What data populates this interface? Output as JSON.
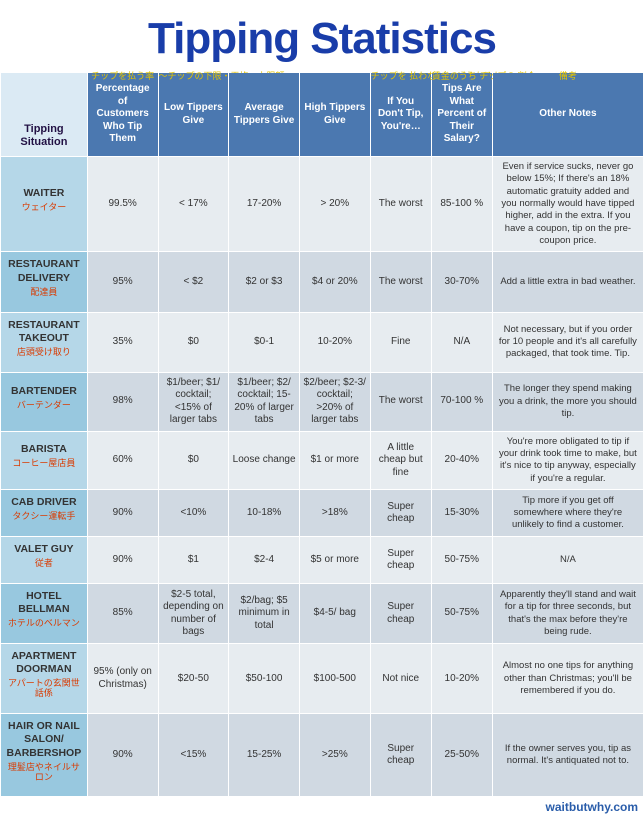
{
  "title": "Tipping Statistics",
  "footer": "waitbutwhy.com",
  "corner": "Tipping Situation",
  "jp_headers": [
    "チップを払う率",
    "〜チップの下限・平均・上限額〜",
    "チップを 払わないと どうなるか",
    "賃金のうち チップの 割合",
    "備考"
  ],
  "headers": [
    "Percentage of Customers Who Tip Them",
    "Low Tippers Give",
    "Average Tippers Give",
    "High Tippers Give",
    "If You Don't Tip, You're…",
    "Tips Are What Percent of Their Salary?",
    "Other Notes"
  ],
  "rows": [
    {
      "label": "WAITER",
      "jp": "ウェイター",
      "cells": [
        "99.5%",
        "< 17%",
        "17-20%",
        "> 20%",
        "The worst",
        "85-100 %",
        "Even if service sucks, never go below 15%; If there's an 18% automatic gratuity added and you normally would have tipped higher, add in the extra. If you have a coupon, tip on the pre-coupon price."
      ]
    },
    {
      "label": "RESTAURANT DELIVERY",
      "jp": "配達員",
      "cells": [
        "95%",
        "< $2",
        "$2 or $3",
        "$4 or 20%",
        "The worst",
        "30-70%",
        "Add a little extra in bad weather."
      ]
    },
    {
      "label": "RESTAURANT TAKEOUT",
      "jp": "店頭受け取り",
      "cells": [
        "35%",
        "$0",
        "$0-1",
        "10-20%",
        "Fine",
        "N/A",
        "Not necessary, but if you order for 10 people and it's all carefully packaged, that took time. Tip."
      ]
    },
    {
      "label": "BARTENDER",
      "jp": "バーテンダー",
      "cells": [
        "98%",
        "$1/beer; $1/ cocktail; <15% of larger tabs",
        "$1/beer; $2/ cocktail; 15-20% of larger tabs",
        "$2/beer; $2-3/ cocktail; >20% of larger tabs",
        "The worst",
        "70-100 %",
        "The longer they spend making you a drink, the more you should tip."
      ]
    },
    {
      "label": "BARISTA",
      "jp": "コーヒー屋店員",
      "cells": [
        "60%",
        "$0",
        "Loose change",
        "$1 or more",
        "A little cheap but fine",
        "20-40%",
        "You're more obligated to tip if your drink took time to make, but it's nice to tip anyway, especially if you're a regular."
      ]
    },
    {
      "label": "CAB DRIVER",
      "jp": "タクシー運転手",
      "cells": [
        "90%",
        "<10%",
        "10-18%",
        ">18%",
        "Super cheap",
        "15-30%",
        "Tip more if you get off somewhere where they're unlikely to find a customer."
      ]
    },
    {
      "label": "VALET GUY",
      "jp": "従者",
      "cells": [
        "90%",
        "$1",
        "$2-4",
        "$5 or more",
        "Super cheap",
        "50-75%",
        "N/A"
      ]
    },
    {
      "label": "HOTEL BELLMAN",
      "jp": "ホテルのベルマン",
      "cells": [
        "85%",
        "$2-5 total, depending on number of bags",
        "$2/bag; $5 minimum in total",
        "$4-5/ bag",
        "Super cheap",
        "50-75%",
        "Apparently they'll stand and wait for a tip for three seconds, but that's the max before they're being rude."
      ]
    },
    {
      "label": "APARTMENT DOORMAN",
      "jp": "アパートの玄関世話係",
      "cells": [
        "95% (only on Christmas)",
        "$20-50",
        "$50-100",
        "$100-500",
        "Not nice",
        "10-20%",
        "Almost no one tips for anything other than Christmas; you'll be remembered if you do."
      ]
    },
    {
      "label": "HAIR OR NAIL SALON/ BARBERSHOP",
      "jp": "理髪店やネイルサロン",
      "cells": [
        "90%",
        "<15%",
        "15-25%",
        ">25%",
        "Super cheap",
        "25-50%",
        "If the owner serves you, tip as normal. It's antiquated not to."
      ]
    }
  ]
}
